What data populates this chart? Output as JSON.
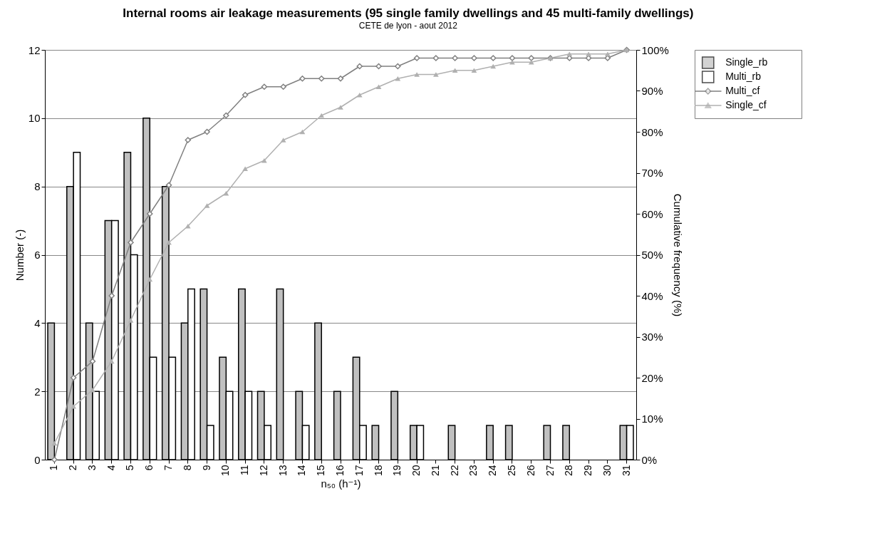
{
  "chart_data": {
    "type": "bar",
    "title": "Internal rooms air leakage measurements (95 single family dwellings and 45 multi-family dwellings)",
    "subtitle": "CETE de lyon - aout 2012",
    "xlabel": "n₅₀ (h⁻¹)",
    "ylabel": "Number (-)",
    "y2label": "Cumulative frequency (%)",
    "categories": [
      "1",
      "2",
      "3",
      "4",
      "5",
      "6",
      "7",
      "8",
      "9",
      "10",
      "11",
      "12",
      "13",
      "14",
      "15",
      "16",
      "17",
      "18",
      "19",
      "20",
      "21",
      "22",
      "23",
      "24",
      "25",
      "26",
      "27",
      "28",
      "29",
      "30",
      "31"
    ],
    "series": [
      {
        "name": "Single_rb",
        "color": "#c0c0c0",
        "values": [
          4,
          8,
          4,
          7,
          9,
          10,
          8,
          4,
          5,
          3,
          5,
          2,
          5,
          2,
          4,
          2,
          3,
          1,
          2,
          1,
          0,
          1,
          0,
          1,
          1,
          0,
          1,
          1,
          0,
          0,
          1
        ]
      },
      {
        "name": "Multi_rb",
        "color": "#ffffff",
        "values": [
          0,
          9,
          2,
          7,
          6,
          3,
          3,
          5,
          1,
          2,
          2,
          1,
          0,
          1,
          0,
          0,
          1,
          0,
          0,
          1,
          0,
          0,
          0,
          0,
          0,
          0,
          0,
          0,
          0,
          0,
          1
        ]
      },
      {
        "name": "Multi_cf",
        "type": "line",
        "axis": "y2",
        "marker": "diamond",
        "color": "#808080",
        "values": [
          0,
          20,
          24,
          40,
          53,
          60,
          67,
          78,
          80,
          84,
          89,
          91,
          91,
          93,
          93,
          93,
          96,
          96,
          96,
          98,
          98,
          98,
          98,
          98,
          98,
          98,
          98,
          98,
          98,
          98,
          100
        ]
      },
      {
        "name": "Single_cf",
        "type": "line",
        "axis": "y2",
        "marker": "triangle",
        "color": "#b0b0b0",
        "values": [
          4,
          13,
          17,
          24,
          34,
          44,
          53,
          57,
          62,
          65,
          71,
          73,
          78,
          80,
          84,
          86,
          89,
          91,
          93,
          94,
          94,
          95,
          95,
          96,
          97,
          97,
          98,
          99,
          99,
          99,
          100
        ]
      }
    ],
    "ylim": [
      0,
      12
    ],
    "yticks": [
      0,
      2,
      4,
      6,
      8,
      10,
      12
    ],
    "y2lim": [
      0,
      100
    ],
    "y2ticks": [
      {
        "value": 0,
        "label": "0%"
      },
      {
        "value": 10,
        "label": "10%"
      },
      {
        "value": 20,
        "label": "20%"
      },
      {
        "value": 30,
        "label": "30%"
      },
      {
        "value": 40,
        "label": "40%"
      },
      {
        "value": 50,
        "label": "50%"
      },
      {
        "value": 60,
        "label": "60%"
      },
      {
        "value": 70,
        "label": "70%"
      },
      {
        "value": 80,
        "label": "80%"
      },
      {
        "value": 90,
        "label": "90%"
      },
      {
        "value": 100,
        "label": "100%"
      }
    ],
    "grid": "y",
    "legend": "right"
  }
}
